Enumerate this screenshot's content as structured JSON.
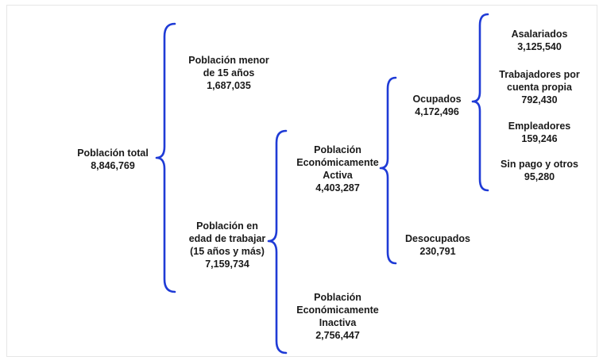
{
  "nodes": {
    "total": {
      "label": "Población total",
      "value": "8,846,769"
    },
    "menor15": {
      "label_1": "Población menor",
      "label_2": "de 15 años",
      "value": "1,687,035"
    },
    "edad_trabajar": {
      "label_1": "Población en",
      "label_2": "edad de trabajar",
      "label_3": "(15 años y más)",
      "value": "7,159,734"
    },
    "pea": {
      "label_1": "Población",
      "label_2": "Económicamente",
      "label_3": "Activa",
      "value": "4,403,287"
    },
    "pei": {
      "label_1": "Población",
      "label_2": "Económicamente",
      "label_3": "Inactiva",
      "value": "2,756,447"
    },
    "ocupados": {
      "label": "Ocupados",
      "value": "4,172,496"
    },
    "desocupados": {
      "label": "Desocupados",
      "value": "230,791"
    },
    "asalariados": {
      "label": "Asalariados",
      "value": "3,125,540"
    },
    "cuenta_propia": {
      "label_1": "Trabajadores por",
      "label_2": "cuenta propia",
      "value": "792,430"
    },
    "empleadores": {
      "label": "Empleadores",
      "value": "159,246"
    },
    "sin_pago": {
      "label": "Sin pago y otros",
      "value": "95,280"
    }
  },
  "colors": {
    "brace": "#1f3bd6",
    "text": "#1a1a1a"
  }
}
